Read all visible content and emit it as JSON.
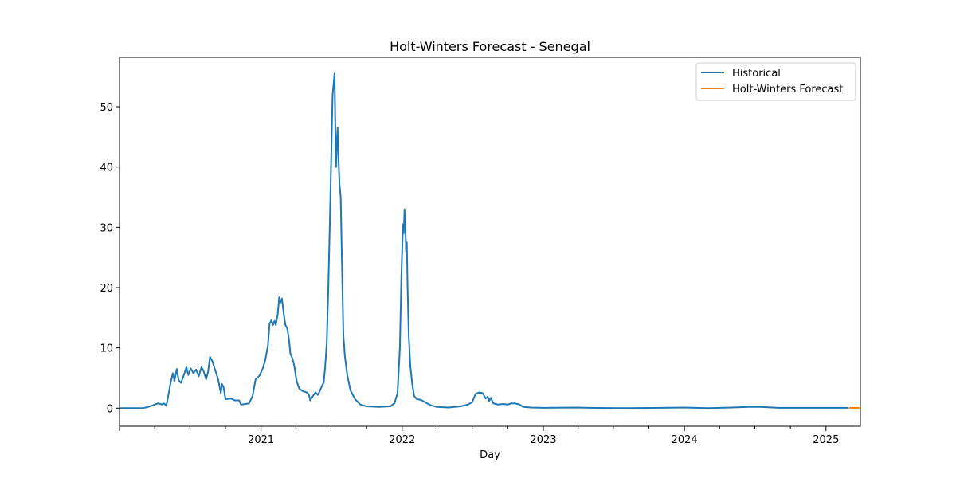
{
  "chart_data": {
    "type": "line",
    "title": "Holt-Winters Forecast - Senegal",
    "xlabel": "Day",
    "ylabel": "",
    "x_type": "date",
    "xlim": [
      "2020-01-01",
      "2025-03-31"
    ],
    "ylim": [
      -3,
      58.2
    ],
    "grid": false,
    "legend_position": "top-right",
    "x_ticks": [
      {
        "date": "2021-01-01",
        "label": "2021"
      },
      {
        "date": "2022-01-01",
        "label": "2022"
      },
      {
        "date": "2023-01-01",
        "label": "2023"
      },
      {
        "date": "2024-01-01",
        "label": "2024"
      },
      {
        "date": "2025-01-01",
        "label": "2025"
      }
    ],
    "y_ticks": [
      0,
      10,
      20,
      30,
      40,
      50
    ],
    "series": [
      {
        "name": "Historical",
        "color": "#1f77b4",
        "points": [
          [
            "2020-01-01",
            0
          ],
          [
            "2020-03-01",
            0
          ],
          [
            "2020-03-15",
            0.2
          ],
          [
            "2020-04-01",
            0.6
          ],
          [
            "2020-04-10",
            0.8
          ],
          [
            "2020-04-20",
            0.6
          ],
          [
            "2020-04-25",
            0.8
          ],
          [
            "2020-05-01",
            0.4
          ],
          [
            "2020-05-06",
            2.0
          ],
          [
            "2020-05-12",
            4.2
          ],
          [
            "2020-05-18",
            5.8
          ],
          [
            "2020-05-22",
            4.5
          ],
          [
            "2020-05-28",
            6.5
          ],
          [
            "2020-06-02",
            4.6
          ],
          [
            "2020-06-08",
            4.2
          ],
          [
            "2020-06-15",
            5.4
          ],
          [
            "2020-06-22",
            6.8
          ],
          [
            "2020-06-27",
            5.5
          ],
          [
            "2020-07-03",
            6.6
          ],
          [
            "2020-07-10",
            5.8
          ],
          [
            "2020-07-17",
            6.4
          ],
          [
            "2020-07-24",
            5.3
          ],
          [
            "2020-07-31",
            6.8
          ],
          [
            "2020-08-05",
            6.2
          ],
          [
            "2020-08-12",
            4.8
          ],
          [
            "2020-08-17",
            6.0
          ],
          [
            "2020-08-22",
            8.5
          ],
          [
            "2020-08-28",
            7.8
          ],
          [
            "2020-09-05",
            6.2
          ],
          [
            "2020-09-12",
            4.8
          ],
          [
            "2020-09-19",
            2.5
          ],
          [
            "2020-09-22",
            4.0
          ],
          [
            "2020-09-26",
            3.5
          ],
          [
            "2020-10-01",
            1.5
          ],
          [
            "2020-10-15",
            1.6
          ],
          [
            "2020-10-25",
            1.3
          ],
          [
            "2020-11-05",
            1.3
          ],
          [
            "2020-11-10",
            0.6
          ],
          [
            "2020-11-22",
            0.7
          ],
          [
            "2020-12-01",
            0.8
          ],
          [
            "2020-12-10",
            2.0
          ],
          [
            "2020-12-18",
            4.8
          ],
          [
            "2020-12-28",
            5.4
          ],
          [
            "2021-01-05",
            6.5
          ],
          [
            "2021-01-12",
            8.0
          ],
          [
            "2021-01-19",
            10.5
          ],
          [
            "2021-01-23",
            14.0
          ],
          [
            "2021-01-28",
            14.6
          ],
          [
            "2021-02-01",
            13.8
          ],
          [
            "2021-02-05",
            14.5
          ],
          [
            "2021-02-08",
            13.8
          ],
          [
            "2021-02-13",
            15.5
          ],
          [
            "2021-02-17",
            18.4
          ],
          [
            "2021-02-20",
            17.5
          ],
          [
            "2021-02-24",
            18.2
          ],
          [
            "2021-03-01",
            15.5
          ],
          [
            "2021-03-05",
            13.8
          ],
          [
            "2021-03-10",
            13.2
          ],
          [
            "2021-03-14",
            11.5
          ],
          [
            "2021-03-18",
            9.0
          ],
          [
            "2021-03-23",
            8.3
          ],
          [
            "2021-03-28",
            7.0
          ],
          [
            "2021-04-03",
            4.5
          ],
          [
            "2021-04-10",
            3.2
          ],
          [
            "2021-04-20",
            2.8
          ],
          [
            "2021-04-30",
            2.6
          ],
          [
            "2021-05-05",
            2.2
          ],
          [
            "2021-05-08",
            1.3
          ],
          [
            "2021-05-15",
            2.0
          ],
          [
            "2021-05-22",
            2.6
          ],
          [
            "2021-05-28",
            2.2
          ],
          [
            "2021-06-03",
            3.0
          ],
          [
            "2021-06-08",
            3.8
          ],
          [
            "2021-06-12",
            4.2
          ],
          [
            "2021-06-16",
            7.0
          ],
          [
            "2021-06-20",
            11.0
          ],
          [
            "2021-06-24",
            20.0
          ],
          [
            "2021-06-28",
            31.0
          ],
          [
            "2021-07-02",
            43.0
          ],
          [
            "2021-07-05",
            52.0
          ],
          [
            "2021-07-08",
            54.0
          ],
          [
            "2021-07-10",
            55.5
          ],
          [
            "2021-07-12",
            47.0
          ],
          [
            "2021-07-14",
            40.0
          ],
          [
            "2021-07-16",
            44.0
          ],
          [
            "2021-07-18",
            46.5
          ],
          [
            "2021-07-20",
            42.0
          ],
          [
            "2021-07-23",
            37.0
          ],
          [
            "2021-07-26",
            35.0
          ],
          [
            "2021-07-29",
            25.0
          ],
          [
            "2021-08-02",
            12.0
          ],
          [
            "2021-08-06",
            8.5
          ],
          [
            "2021-08-12",
            5.5
          ],
          [
            "2021-08-20",
            3.0
          ],
          [
            "2021-09-01",
            1.5
          ],
          [
            "2021-09-15",
            0.6
          ],
          [
            "2021-10-01",
            0.3
          ],
          [
            "2021-11-01",
            0.2
          ],
          [
            "2021-12-01",
            0.3
          ],
          [
            "2021-12-12",
            0.8
          ],
          [
            "2021-12-20",
            2.5
          ],
          [
            "2021-12-26",
            10.0
          ],
          [
            "2021-12-30",
            22.0
          ],
          [
            "2022-01-03",
            30.5
          ],
          [
            "2022-01-05",
            29.0
          ],
          [
            "2022-01-07",
            33.0
          ],
          [
            "2022-01-09",
            31.0
          ],
          [
            "2022-01-11",
            26.0
          ],
          [
            "2022-01-13",
            27.5
          ],
          [
            "2022-01-15",
            20.0
          ],
          [
            "2022-01-18",
            12.0
          ],
          [
            "2022-01-22",
            7.0
          ],
          [
            "2022-01-27",
            4.0
          ],
          [
            "2022-02-01",
            2.0
          ],
          [
            "2022-02-08",
            1.5
          ],
          [
            "2022-02-18",
            1.4
          ],
          [
            "2022-03-01",
            1.0
          ],
          [
            "2022-03-15",
            0.5
          ],
          [
            "2022-04-01",
            0.2
          ],
          [
            "2022-05-01",
            0.1
          ],
          [
            "2022-06-01",
            0.3
          ],
          [
            "2022-06-20",
            0.6
          ],
          [
            "2022-07-01",
            1.0
          ],
          [
            "2022-07-10",
            2.4
          ],
          [
            "2022-07-20",
            2.6
          ],
          [
            "2022-07-28",
            2.5
          ],
          [
            "2022-08-05",
            1.6
          ],
          [
            "2022-08-10",
            1.9
          ],
          [
            "2022-08-14",
            1.2
          ],
          [
            "2022-08-18",
            1.7
          ],
          [
            "2022-08-25",
            0.8
          ],
          [
            "2022-09-05",
            0.6
          ],
          [
            "2022-09-20",
            0.7
          ],
          [
            "2022-10-01",
            0.6
          ],
          [
            "2022-10-10",
            0.8
          ],
          [
            "2022-10-20",
            0.8
          ],
          [
            "2022-11-01",
            0.6
          ],
          [
            "2022-11-10",
            0.2
          ],
          [
            "2022-12-01",
            0.1
          ],
          [
            "2023-01-01",
            0.05
          ],
          [
            "2023-04-01",
            0.1
          ],
          [
            "2023-05-01",
            0.05
          ],
          [
            "2023-08-01",
            0.0
          ],
          [
            "2023-11-01",
            0.05
          ],
          [
            "2024-01-01",
            0.1
          ],
          [
            "2024-03-01",
            0.0
          ],
          [
            "2024-05-01",
            0.1
          ],
          [
            "2024-06-15",
            0.2
          ],
          [
            "2024-07-15",
            0.2
          ],
          [
            "2024-09-01",
            0.05
          ],
          [
            "2024-12-01",
            0.05
          ],
          [
            "2025-02-28",
            0.05
          ]
        ]
      },
      {
        "name": "Holt-Winters Forecast",
        "color": "#ff7f0e",
        "points": [
          [
            "2025-03-01",
            0.05
          ],
          [
            "2025-03-31",
            0.05
          ]
        ]
      }
    ]
  }
}
